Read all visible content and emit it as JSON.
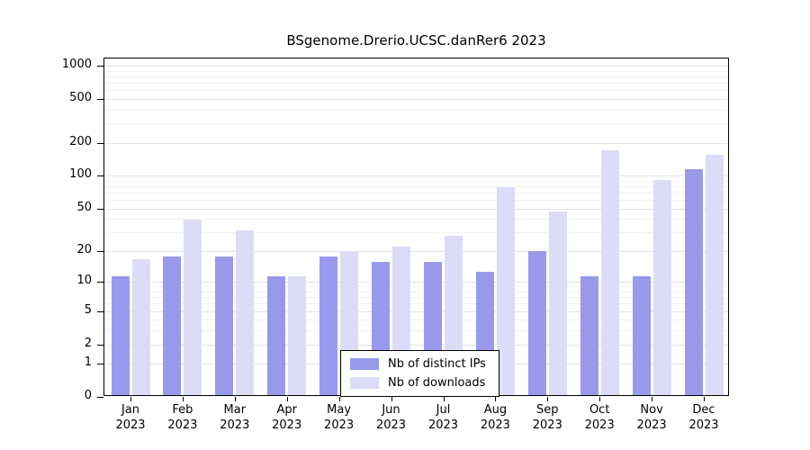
{
  "title": "BSgenome.Drerio.UCSC.danRer6 2023",
  "chart_data": {
    "type": "bar",
    "title": "BSgenome.Drerio.UCSC.danRer6 2023",
    "categories": [
      "Jan",
      "Feb",
      "Mar",
      "Apr",
      "May",
      "Jun",
      "Jul",
      "Aug",
      "Sep",
      "Oct",
      "Nov",
      "Dec"
    ],
    "year": "2023",
    "series": [
      {
        "name": "Nb of distinct IPs",
        "color": "#9999ec",
        "values": [
          11,
          17,
          17,
          11,
          17,
          15,
          15,
          12,
          19,
          11,
          11,
          110
        ]
      },
      {
        "name": "Nb of downloads",
        "color": "#dcdcf8",
        "values": [
          16,
          38,
          30,
          11,
          19,
          21,
          27,
          75,
          45,
          165,
          88,
          150
        ]
      }
    ],
    "xlabel": "",
    "ylabel": "",
    "scale": "log10(1+x)",
    "yticks": [
      0,
      1,
      2,
      5,
      10,
      20,
      50,
      100,
      200,
      500,
      1000
    ],
    "minor_gridlines": [
      3,
      4,
      6,
      7,
      8,
      9,
      30,
      40,
      60,
      70,
      80,
      90,
      300,
      400,
      600,
      700,
      800,
      900
    ],
    "ylim": [
      0,
      1000
    ],
    "grid": true,
    "legend_position": "inside-bottom-center"
  }
}
